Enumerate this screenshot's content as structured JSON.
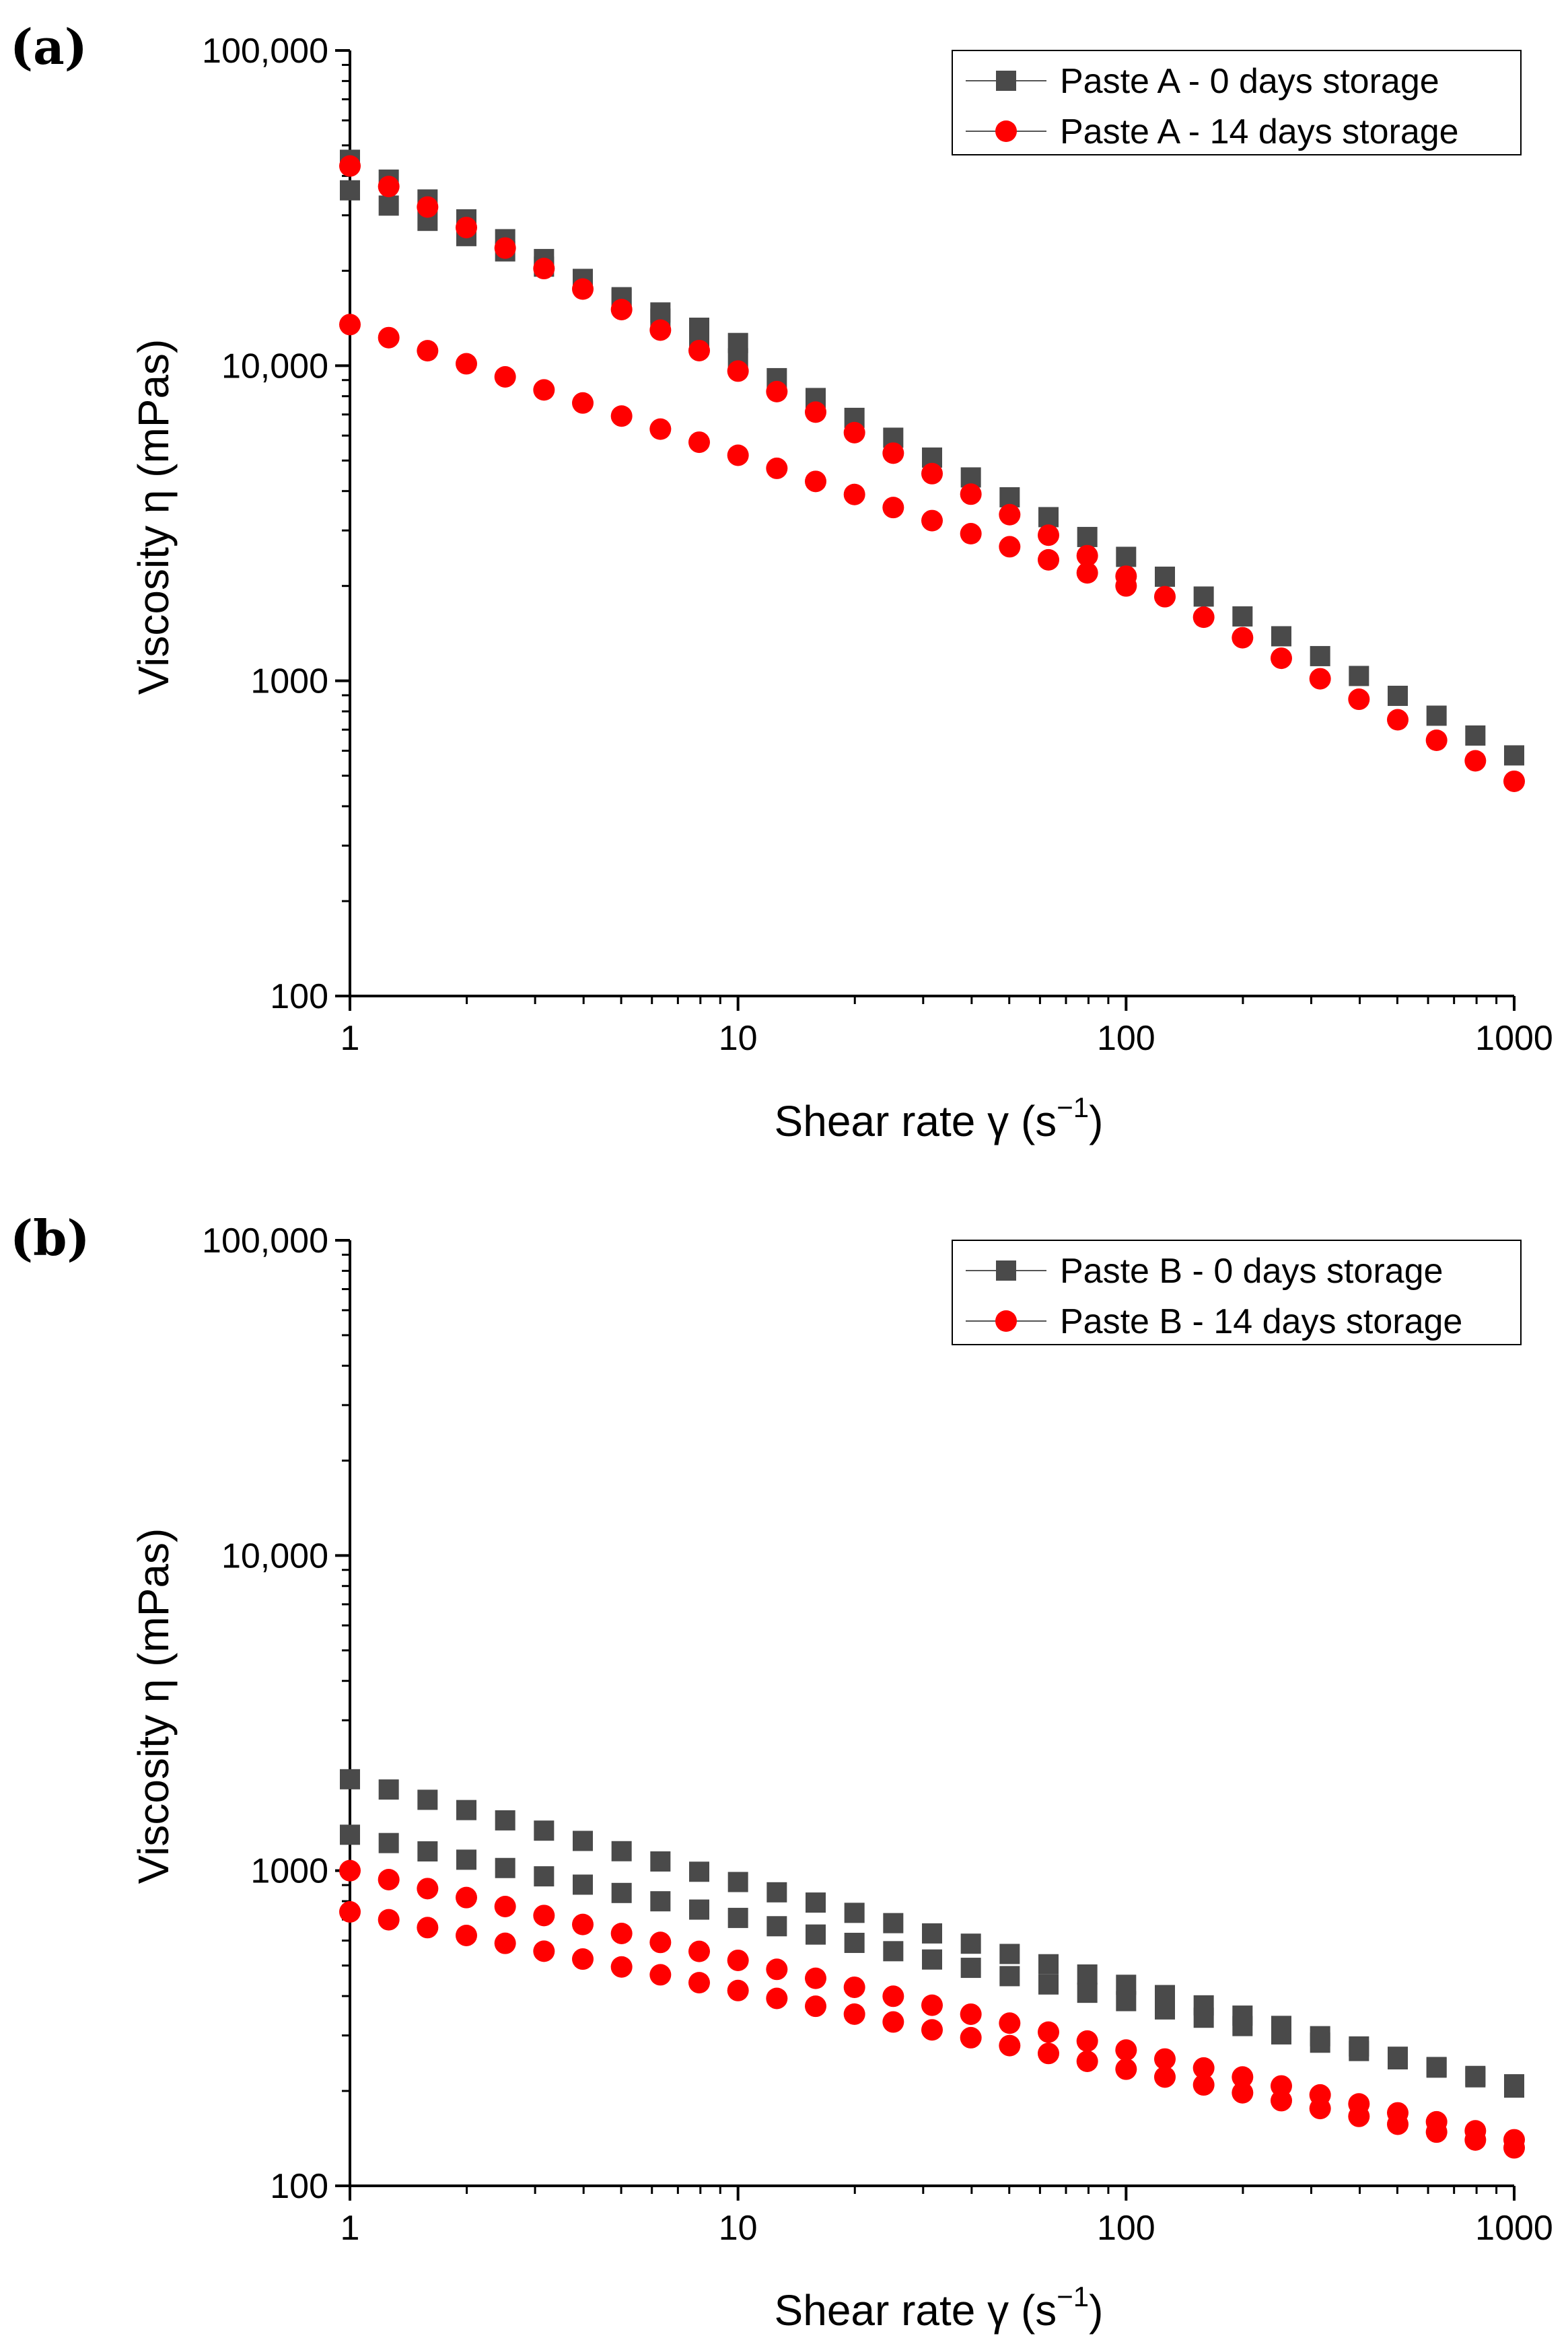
{
  "chart_data": [
    {
      "panel_label": "(a)",
      "type": "scatter",
      "xscale": "log",
      "yscale": "log",
      "xlim": [
        1,
        1000
      ],
      "ylim": [
        100,
        100000
      ],
      "xticks": [
        "1",
        "10",
        "100",
        "1000"
      ],
      "yticks": [
        "100",
        "1000",
        "10,000",
        "100,000"
      ],
      "xlabel": "Shear rate γ (s",
      "xlabel_sup": "−1",
      "xlabel_tail": ")",
      "ylabel": "Viscosity η (mPas)",
      "legend_position": "top-right",
      "series": [
        {
          "name": "Paste A - 0 days storage",
          "color": "#4a4a4a",
          "marker": "square",
          "curves": [
            {
              "x_start": 1,
              "x_end": 1000,
              "y_start": 45000,
              "y_end": 580
            },
            {
              "x_start": 1,
              "x_end": 10,
              "y_start": 36000,
              "y_end": 11800
            }
          ]
        },
        {
          "name": "Paste A - 14 days storage",
          "color": "#ff0000",
          "marker": "circle",
          "curves": [
            {
              "x_start": 1,
              "x_end": 1000,
              "y_start": 43000,
              "y_end": 480
            },
            {
              "x_start": 1,
              "x_end": 100,
              "y_start": 13500,
              "y_end": 2000
            }
          ]
        }
      ]
    },
    {
      "panel_label": "(b)",
      "type": "scatter",
      "xscale": "log",
      "yscale": "log",
      "xlim": [
        1,
        1000
      ],
      "ylim": [
        100,
        100000
      ],
      "xticks": [
        "1",
        "10",
        "100",
        "1000"
      ],
      "yticks": [
        "100",
        "1000",
        "10,000",
        "100,000"
      ],
      "xlabel": "Shear rate γ (s",
      "xlabel_sup": "−1",
      "xlabel_tail": ")",
      "ylabel": "Viscosity η (mPas)",
      "legend_position": "top-right",
      "series": [
        {
          "name": "Paste B - 0 days storage",
          "color": "#4a4a4a",
          "marker": "square",
          "curves": [
            {
              "x_start": 1,
              "x_end": 1000,
              "y_start": 1950,
              "y_end": 205
            },
            {
              "x_start": 1,
              "x_end": 1000,
              "y_start": 1300,
              "y_end": 210
            }
          ]
        },
        {
          "name": "Paste B - 14 days storage",
          "color": "#ff0000",
          "marker": "circle",
          "curves": [
            {
              "x_start": 1,
              "x_end": 1000,
              "y_start": 1000,
              "y_end": 140
            },
            {
              "x_start": 1,
              "x_end": 1000,
              "y_start": 740,
              "y_end": 132
            }
          ]
        }
      ]
    }
  ]
}
